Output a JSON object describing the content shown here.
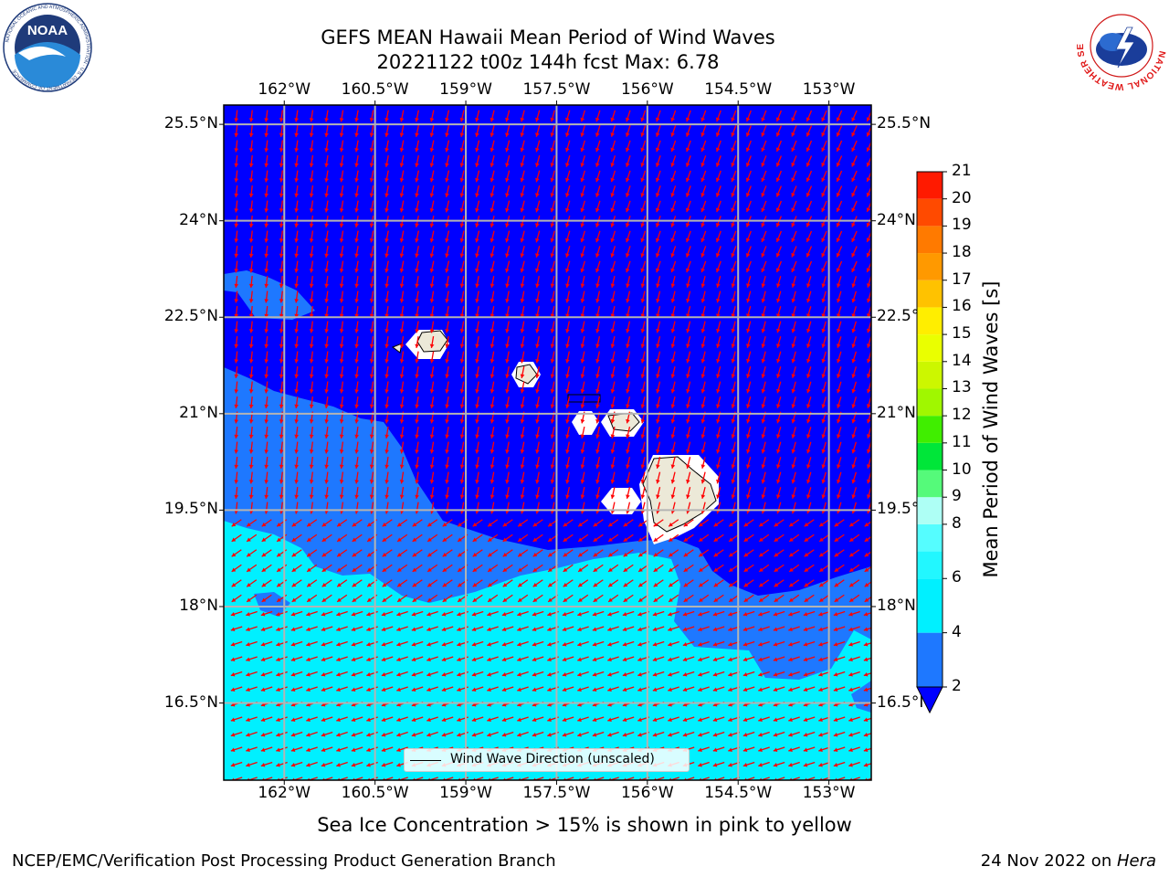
{
  "header": {
    "title_line1": "GEFS MEAN Hawaii Mean Period of Wind Waves",
    "title_line2": "20221122 t00z 144h fcst   Max: 6.78"
  },
  "logos": {
    "left": {
      "name": "noaa-logo",
      "text": "NOAA",
      "ring_text": "NATIONAL OCEANIC AND ATMOSPHERIC ADMINISTRATION · U.S. DEPARTMENT OF COMMERCE"
    },
    "right": {
      "name": "nws-logo",
      "ring_text": "NATIONAL WEATHER SERVICE"
    }
  },
  "chart_data": {
    "type": "heatmap",
    "title": "GEFS MEAN Hawaii Mean Period of Wind Waves",
    "subtitle": "20221122 t00z 144h fcst   Max: 6.78",
    "lon_ticks": [
      "162°W",
      "160.5°W",
      "159°W",
      "157.5°W",
      "156°W",
      "154.5°W",
      "153°W"
    ],
    "lat_ticks": [
      "25.5°N",
      "24°N",
      "22.5°N",
      "21°N",
      "19.5°N",
      "18°N",
      "16.5°N"
    ],
    "lon_values": [
      -162,
      -160.5,
      -159,
      -157.5,
      -156,
      -154.5,
      -153
    ],
    "lat_values": [
      25.5,
      24,
      22.5,
      21,
      19.5,
      18,
      16.5
    ],
    "lon_range": [
      -163,
      -152.3
    ],
    "lat_range": [
      15.3,
      25.8
    ],
    "grid": true,
    "colorbar": {
      "label": "Mean Period of Wind Waves [s]",
      "ticks": [
        2,
        4,
        6,
        8,
        9,
        10,
        11,
        12,
        13,
        14,
        15,
        16,
        17,
        18,
        19,
        20,
        21
      ],
      "bins": [
        {
          "lo": 2,
          "hi": 4,
          "color": "#1e78ff"
        },
        {
          "lo": 4,
          "hi": 6,
          "color": "#00f0ff"
        },
        {
          "lo": 6,
          "hi": 7,
          "color": "#22f7ff"
        },
        {
          "lo": 7,
          "hi": 8,
          "color": "#55fdff"
        },
        {
          "lo": 8,
          "hi": 9,
          "color": "#aefff5"
        },
        {
          "lo": 9,
          "hi": 10,
          "color": "#55fa7a"
        },
        {
          "lo": 10,
          "hi": 11,
          "color": "#00e639"
        },
        {
          "lo": 11,
          "hi": 12,
          "color": "#40ee00"
        },
        {
          "lo": 12,
          "hi": 13,
          "color": "#a0f700"
        },
        {
          "lo": 13,
          "hi": 14,
          "color": "#ccf700"
        },
        {
          "lo": 14,
          "hi": 15,
          "color": "#eaff00"
        },
        {
          "lo": 15,
          "hi": 16,
          "color": "#ffee00"
        },
        {
          "lo": 16,
          "hi": 17,
          "color": "#ffc200"
        },
        {
          "lo": 17,
          "hi": 18,
          "color": "#ff9900"
        },
        {
          "lo": 18,
          "hi": 19,
          "color": "#ff7a00"
        },
        {
          "lo": 19,
          "hi": 20,
          "color": "#ff4a00"
        },
        {
          "lo": 20,
          "hi": 21,
          "color": "#ff1a00"
        }
      ],
      "under_color": "#0000ff"
    },
    "field_colors": {
      "under_2s": "#0000ff",
      "2_to_4s": "#1e78ff",
      "4_to_6s": "#00f0ff",
      "land": "#ece9d8",
      "arrows": "#ff0000"
    },
    "legend": {
      "label": "Wind Wave Direction (unscaled)",
      "placement": "lower-center"
    },
    "max_value": 6.78,
    "islands": [
      "Niihau",
      "Kauai",
      "Oahu",
      "Molokai",
      "Lanai",
      "Maui",
      "Kahoolawe",
      "Hawaii"
    ]
  },
  "note": "Sea Ice Concentration > 15% is shown in pink to yellow",
  "footer": {
    "left": "NCEP/EMC/Verification Post Processing Product Generation Branch",
    "right_prefix": "24 Nov 2022 on ",
    "right_machine": "Hera"
  }
}
